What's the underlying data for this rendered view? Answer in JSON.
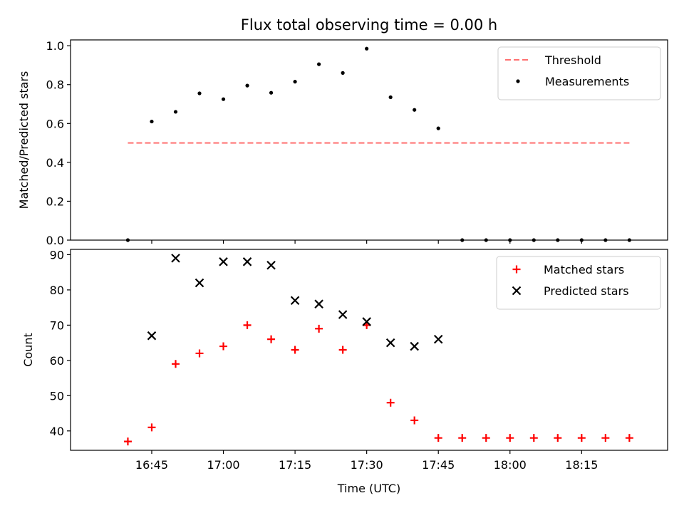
{
  "chart_data": [
    {
      "type": "scatter",
      "title": "Flux total observing time = 0.00 h",
      "xlabel": "",
      "ylabel": "Matched/Predicted stars",
      "ylim": [
        0,
        1.03
      ],
      "xlim": [
        "16:28",
        "18:33"
      ],
      "yticks": [
        "0.0",
        "0.2",
        "0.4",
        "0.6",
        "0.8",
        "1.0"
      ],
      "legend_position": "top-right",
      "grid": false,
      "threshold": {
        "name": "Threshold",
        "color": "#ff7070",
        "style": "dashed",
        "y": 0.5,
        "x_start": "16:40",
        "x_end": "18:25"
      },
      "series": [
        {
          "name": "Measurements",
          "color": "#000000",
          "marker": "dot",
          "points": [
            {
              "x": "16:40",
              "y": 0.0
            },
            {
              "x": "16:45",
              "y": 0.61
            },
            {
              "x": "16:50",
              "y": 0.66
            },
            {
              "x": "16:55",
              "y": 0.755
            },
            {
              "x": "17:00",
              "y": 0.725
            },
            {
              "x": "17:05",
              "y": 0.795
            },
            {
              "x": "17:10",
              "y": 0.758
            },
            {
              "x": "17:15",
              "y": 0.815
            },
            {
              "x": "17:20",
              "y": 0.905
            },
            {
              "x": "17:25",
              "y": 0.86
            },
            {
              "x": "17:30",
              "y": 0.985
            },
            {
              "x": "17:35",
              "y": 0.735
            },
            {
              "x": "17:40",
              "y": 0.67
            },
            {
              "x": "17:45",
              "y": 0.575
            },
            {
              "x": "17:50",
              "y": 0.0
            },
            {
              "x": "17:55",
              "y": 0.0
            },
            {
              "x": "18:00",
              "y": 0.0
            },
            {
              "x": "18:05",
              "y": 0.0
            },
            {
              "x": "18:10",
              "y": 0.0
            },
            {
              "x": "18:15",
              "y": 0.0
            },
            {
              "x": "18:20",
              "y": 0.0
            },
            {
              "x": "18:25",
              "y": 0.0
            }
          ]
        }
      ]
    },
    {
      "type": "scatter",
      "title": "",
      "xlabel": "Time (UTC)",
      "ylabel": "Count",
      "ylim": [
        34.5,
        91.5
      ],
      "xlim": [
        "16:28",
        "18:33"
      ],
      "xticks": [
        "16:45",
        "17:00",
        "17:15",
        "17:30",
        "17:45",
        "18:00",
        "18:15"
      ],
      "yticks": [
        "40",
        "50",
        "60",
        "70",
        "80",
        "90"
      ],
      "legend_position": "top-right",
      "grid": false,
      "series": [
        {
          "name": "Matched stars",
          "color": "#ff0000",
          "marker": "plus",
          "points": [
            {
              "x": "16:40",
              "y": 37
            },
            {
              "x": "16:45",
              "y": 41
            },
            {
              "x": "16:50",
              "y": 59
            },
            {
              "x": "16:55",
              "y": 62
            },
            {
              "x": "17:00",
              "y": 64
            },
            {
              "x": "17:05",
              "y": 70
            },
            {
              "x": "17:10",
              "y": 66
            },
            {
              "x": "17:15",
              "y": 63
            },
            {
              "x": "17:20",
              "y": 69
            },
            {
              "x": "17:25",
              "y": 63
            },
            {
              "x": "17:30",
              "y": 70
            },
            {
              "x": "17:35",
              "y": 48
            },
            {
              "x": "17:40",
              "y": 43
            },
            {
              "x": "17:45",
              "y": 38
            },
            {
              "x": "17:50",
              "y": 38
            },
            {
              "x": "17:55",
              "y": 38
            },
            {
              "x": "18:00",
              "y": 38
            },
            {
              "x": "18:05",
              "y": 38
            },
            {
              "x": "18:10",
              "y": 38
            },
            {
              "x": "18:15",
              "y": 38
            },
            {
              "x": "18:20",
              "y": 38
            },
            {
              "x": "18:25",
              "y": 38
            }
          ]
        },
        {
          "name": "Predicted stars",
          "color": "#000000",
          "marker": "x",
          "points": [
            {
              "x": "16:45",
              "y": 67
            },
            {
              "x": "16:50",
              "y": 89
            },
            {
              "x": "16:55",
              "y": 82
            },
            {
              "x": "17:00",
              "y": 88
            },
            {
              "x": "17:05",
              "y": 88
            },
            {
              "x": "17:10",
              "y": 87
            },
            {
              "x": "17:15",
              "y": 77
            },
            {
              "x": "17:20",
              "y": 76
            },
            {
              "x": "17:25",
              "y": 73
            },
            {
              "x": "17:30",
              "y": 71
            },
            {
              "x": "17:35",
              "y": 65
            },
            {
              "x": "17:40",
              "y": 64
            },
            {
              "x": "17:45",
              "y": 66
            }
          ]
        }
      ]
    }
  ]
}
